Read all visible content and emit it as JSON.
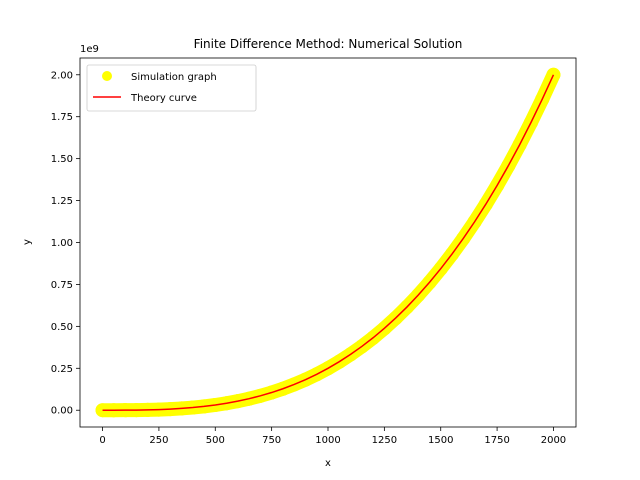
{
  "chart_data": {
    "type": "scatter",
    "title": "Finite Difference Method: Numerical Solution",
    "xlabel": "x",
    "ylabel": "y",
    "y_offset_label": "1e9",
    "xlim": [
      -100,
      2100
    ],
    "ylim": [
      -0.1,
      2.1
    ],
    "y_scale_factor": 1000000000,
    "xticks": [
      0,
      250,
      500,
      750,
      1000,
      1250,
      1500,
      1750,
      2000
    ],
    "xtick_labels": [
      "0",
      "250",
      "500",
      "750",
      "1000",
      "1250",
      "1500",
      "1750",
      "2000"
    ],
    "yticks": [
      0.0,
      0.25,
      0.5,
      0.75,
      1.0,
      1.25,
      1.5,
      1.75,
      2.0
    ],
    "ytick_labels": [
      "0.00",
      "0.25",
      "0.50",
      "0.75",
      "1.00",
      "1.25",
      "1.50",
      "1.75",
      "2.00"
    ],
    "grid": false,
    "legend_position": "top-left",
    "series": [
      {
        "name": "Simulation graph",
        "kind": "scatter",
        "color": "#ffff00",
        "x": [
          0,
          50,
          100,
          150,
          200,
          250,
          300,
          350,
          400,
          450,
          500,
          550,
          600,
          650,
          700,
          750,
          800,
          850,
          900,
          950,
          1000,
          1050,
          1100,
          1150,
          1200,
          1250,
          1300,
          1350,
          1400,
          1450,
          1500,
          1550,
          1600,
          1650,
          1700,
          1750,
          1800,
          1850,
          1900,
          1950,
          2000
        ],
        "y": [
          0.0,
          3.13e-05,
          0.00025,
          0.000844,
          0.002,
          0.00391,
          0.00675,
          0.0107,
          0.016,
          0.0228,
          0.03125,
          0.0416,
          0.054,
          0.0687,
          0.0858,
          0.1055,
          0.128,
          0.1535,
          0.1822,
          0.2143,
          0.25,
          0.2894,
          0.3328,
          0.3802,
          0.432,
          0.4883,
          0.5493,
          0.6151,
          0.686,
          0.7622,
          0.8438,
          0.931,
          1.024,
          1.123,
          1.2283,
          1.3398,
          1.458,
          1.583,
          1.7148,
          1.8537,
          2.0
        ]
      },
      {
        "name": "Theory curve",
        "kind": "line",
        "color": "#ff0000",
        "x": [
          0,
          50,
          100,
          150,
          200,
          250,
          300,
          350,
          400,
          450,
          500,
          550,
          600,
          650,
          700,
          750,
          800,
          850,
          900,
          950,
          1000,
          1050,
          1100,
          1150,
          1200,
          1250,
          1300,
          1350,
          1400,
          1450,
          1500,
          1550,
          1600,
          1650,
          1700,
          1750,
          1800,
          1850,
          1900,
          1950,
          2000
        ],
        "y": [
          0.0,
          3.13e-05,
          0.00025,
          0.000844,
          0.002,
          0.00391,
          0.00675,
          0.0107,
          0.016,
          0.0228,
          0.03125,
          0.0416,
          0.054,
          0.0687,
          0.0858,
          0.1055,
          0.128,
          0.1535,
          0.1822,
          0.2143,
          0.25,
          0.2894,
          0.3328,
          0.3802,
          0.432,
          0.4883,
          0.5493,
          0.6151,
          0.686,
          0.7622,
          0.8438,
          0.931,
          1.024,
          1.123,
          1.2283,
          1.3398,
          1.458,
          1.583,
          1.7148,
          1.8537,
          2.0
        ]
      }
    ]
  }
}
